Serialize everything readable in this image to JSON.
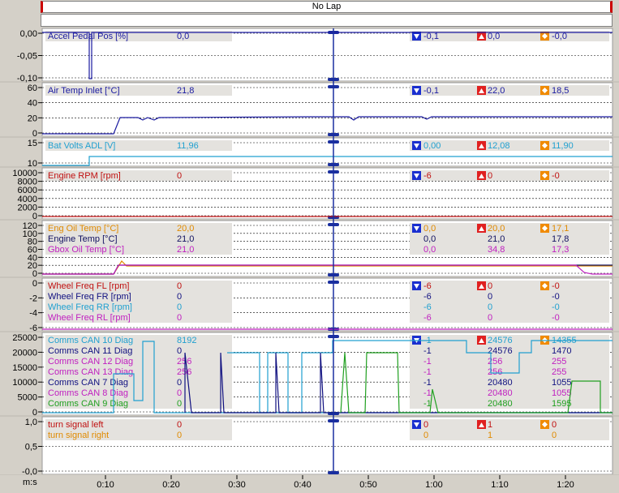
{
  "lap": {
    "label": "No Lap"
  },
  "time_axis": {
    "unit_label": "m:s",
    "ticks": [
      "0:10",
      "0:20",
      "0:30",
      "0:40",
      "0:50",
      "1:00",
      "1:10",
      "1:20"
    ]
  },
  "colors": {
    "min_marker": "#1a2fd0",
    "max_marker": "#e02020",
    "avg_marker": "#f08a00",
    "cursor": "#1a2fa0",
    "panel_label_bg": "#e4e2de"
  },
  "panels": [
    {
      "id": "accel",
      "yticks": [
        "0,00",
        "-0,05",
        "-0,10"
      ],
      "channels": [
        {
          "name": "Accel Pedal Pos [%]",
          "value": "0,0",
          "min": "-0,1",
          "max": "0,0",
          "avg": "-0,0",
          "color": "#1a1aa0"
        }
      ]
    },
    {
      "id": "airtemp",
      "yticks": [
        "60",
        "40",
        "20",
        "0"
      ],
      "channels": [
        {
          "name": "Air Temp Inlet [°C]",
          "value": "21,8",
          "min": "-0,1",
          "max": "22,0",
          "avg": "18,5",
          "color": "#1a1aa0"
        }
      ]
    },
    {
      "id": "batvolts",
      "yticks": [
        "15",
        "10"
      ],
      "channels": [
        {
          "name": "Bat Volts ADL [V]",
          "value": "11,96",
          "min": "0,00",
          "max": "12,08",
          "avg": "11,90",
          "color": "#20a0d0"
        }
      ]
    },
    {
      "id": "rpm",
      "yticks": [
        "10000",
        "8000",
        "6000",
        "4000",
        "2000",
        "0"
      ],
      "channels": [
        {
          "name": "Engine RPM [rpm]",
          "value": "0",
          "min": "-6",
          "max": "0",
          "avg": "-0",
          "color": "#c01010"
        }
      ]
    },
    {
      "id": "temps",
      "yticks": [
        "120",
        "100",
        "80",
        "60",
        "40",
        "20",
        "0"
      ],
      "channels": [
        {
          "name": "Eng Oil Temp [°C]",
          "value": "20,0",
          "min": "0,0",
          "max": "20,0",
          "avg": "17,1",
          "color": "#e08a00"
        },
        {
          "name": "Engine Temp [°C]",
          "value": "21,0",
          "min": "0,0",
          "max": "21,0",
          "avg": "17,8",
          "color": "#101060"
        },
        {
          "name": "Gbox Oil Temp [°C]",
          "value": "21,0",
          "min": "0,0",
          "max": "34,8",
          "avg": "17,3",
          "color": "#c020c0"
        }
      ]
    },
    {
      "id": "wheels",
      "yticks": [
        "0",
        "-2",
        "-4",
        "-6"
      ],
      "channels": [
        {
          "name": "Wheel Freq FL [rpm]",
          "value": "0",
          "min": "-6",
          "max": "0",
          "avg": "-0",
          "color": "#c01010"
        },
        {
          "name": "Wheel Freq FR [rpm]",
          "value": "0",
          "min": "-6",
          "max": "0",
          "avg": "-0",
          "color": "#101080"
        },
        {
          "name": "Wheel Freq RR [rpm]",
          "value": "0",
          "min": "-6",
          "max": "0",
          "avg": "-0",
          "color": "#20a0d0"
        },
        {
          "name": "Wheel Freq RL [rpm]",
          "value": "0",
          "min": "-6",
          "max": "0",
          "avg": "-0",
          "color": "#c020c0"
        }
      ]
    },
    {
      "id": "comms",
      "yticks": [
        "25000",
        "20000",
        "15000",
        "10000",
        "5000",
        "0"
      ],
      "channels": [
        {
          "name": "Comms CAN 10 Diag",
          "value": "8192",
          "min": "-1",
          "max": "24576",
          "avg": "14355",
          "color": "#20a0d0"
        },
        {
          "name": "Comms CAN 11 Diag",
          "value": "0",
          "min": "-1",
          "max": "24576",
          "avg": "1470",
          "color": "#101080"
        },
        {
          "name": "Comms CAN 12 Diag",
          "value": "256",
          "min": "-1",
          "max": "256",
          "avg": "255",
          "color": "#c020c0"
        },
        {
          "name": "Comms CAN 13 Diag",
          "value": "256",
          "min": "-1",
          "max": "256",
          "avg": "255",
          "color": "#c020c0"
        },
        {
          "name": "Comms CAN 7 Diag",
          "value": "0",
          "min": "-1",
          "max": "20480",
          "avg": "1055",
          "color": "#101080"
        },
        {
          "name": "Comms CAN 8 Diag",
          "value": "0",
          "min": "-1",
          "max": "20480",
          "avg": "1055",
          "color": "#c020c0"
        },
        {
          "name": "Comms CAN 9 Diag",
          "value": "0",
          "min": "-1",
          "max": "20480",
          "avg": "1595",
          "color": "#20a020"
        }
      ]
    },
    {
      "id": "turn",
      "yticks": [
        "1,0",
        "0,5",
        "-0,0"
      ],
      "channels": [
        {
          "name": "turn signal left",
          "value": "0",
          "min": "0",
          "max": "1",
          "avg": "0",
          "color": "#c01010"
        },
        {
          "name": "turn signal right",
          "value": "0",
          "min": "0",
          "max": "1",
          "avg": "0",
          "color": "#e08a00"
        }
      ]
    }
  ]
}
